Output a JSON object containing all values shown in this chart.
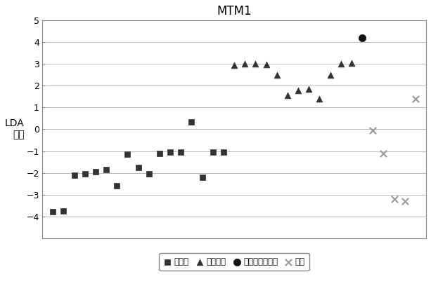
{
  "title": "MTM1",
  "ylabel_line1": "LDA",
  "ylabel_line2": "得分",
  "ylim": [
    -5,
    5
  ],
  "yticks": [
    -4,
    -3,
    -2,
    -1,
    0,
    1,
    2,
    3,
    4,
    5
  ],
  "responders": {
    "label": "响应者",
    "color": "#333333",
    "marker": "s",
    "x": [
      1,
      2,
      3,
      4,
      5,
      6,
      7,
      8,
      9,
      10,
      11,
      12,
      13,
      14,
      15,
      16,
      17
    ],
    "y": [
      -3.8,
      -3.75,
      -2.1,
      -2.05,
      -1.95,
      -1.85,
      -2.6,
      -1.15,
      -1.75,
      -2.05,
      -1.1,
      -1.05,
      -1.05,
      0.35,
      -2.2,
      -1.05,
      -1.05
    ]
  },
  "non_responders": {
    "label": "非响应者",
    "color": "#333333",
    "marker": "^",
    "x": [
      18,
      19,
      20,
      21,
      22,
      23,
      24,
      25,
      26,
      27,
      28,
      29
    ],
    "y": [
      2.95,
      3.0,
      3.0,
      2.97,
      2.5,
      1.55,
      1.8,
      1.85,
      1.4,
      2.5,
      3.0,
      3.05
    ]
  },
  "excluded_non_responders": {
    "label": "排除的非响应者",
    "color": "#111111",
    "marker": "o",
    "x": [
      30
    ],
    "y": [
      4.2
    ]
  },
  "unknown": {
    "label": "未知",
    "color": "#999999",
    "marker": "x",
    "x": [
      31,
      32,
      33,
      34,
      35
    ],
    "y": [
      -0.05,
      -1.1,
      -3.2,
      -3.3,
      1.4
    ]
  },
  "background_color": "#ffffff",
  "grid_color": "#bbbbbb"
}
